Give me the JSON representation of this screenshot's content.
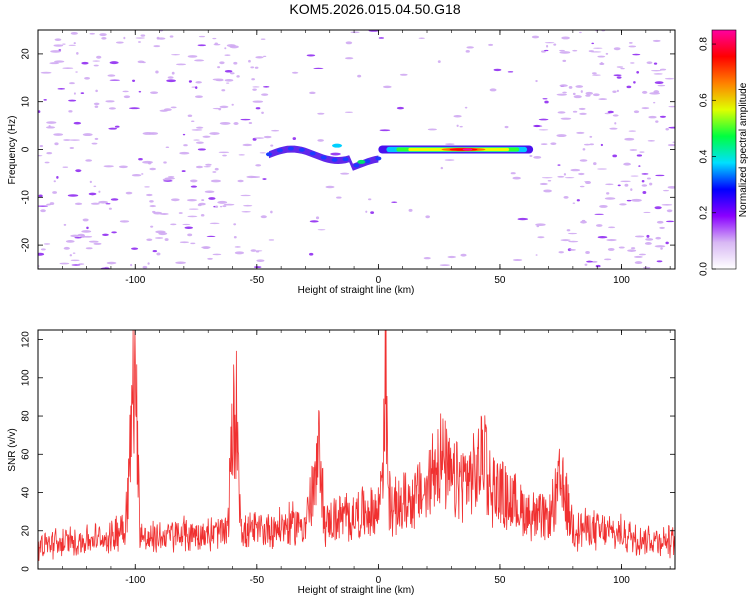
{
  "title": "KOM5.2026.015.04.50.G18",
  "chart_data": [
    {
      "type": "heatmap",
      "xlabel": "Height of straight line (km)",
      "ylabel": "Frequency (Hz)",
      "xlim": [
        -140,
        122
      ],
      "ylim": [
        -25,
        25
      ],
      "xticks": [
        -100,
        -50,
        0,
        50,
        100
      ],
      "xtick_labels": [
        "-100",
        "-50",
        "0",
        "50",
        "100"
      ],
      "yticks": [
        -20,
        -10,
        0,
        10,
        20
      ],
      "ytick_labels": [
        "-20",
        "-10",
        "0",
        "10",
        "20"
      ],
      "colorbar": {
        "label": "Normalized spectral amplitude",
        "range": [
          0.0,
          0.85
        ],
        "ticks": [
          0.0,
          0.2,
          0.4,
          0.6,
          0.8
        ],
        "tick_labels": [
          "0.0",
          "0.2",
          "0.4",
          "0.6",
          "0.8"
        ],
        "colors": [
          "#ffffff",
          "#d8b8f4",
          "#8a00ff",
          "#0000ff",
          "#00e0ff",
          "#00ff40",
          "#e0ff00",
          "#ff8000",
          "#ff0000",
          "#ff00a0"
        ]
      },
      "features": [
        {
          "name": "main ridge",
          "x_range": [
            0,
            62
          ],
          "frequency": 0,
          "peak_amplitude": 0.8,
          "peak_x": 35
        },
        {
          "name": "left wavy band",
          "x_range": [
            -45,
            0
          ],
          "frequency": -1.5,
          "peak_amplitude": 0.25
        }
      ]
    },
    {
      "type": "line",
      "xlabel": "Height of straight line (km)",
      "ylabel": "SNR (v/v)",
      "xlim": [
        -140,
        122
      ],
      "ylim": [
        0,
        125
      ],
      "xticks": [
        -100,
        -50,
        0,
        50,
        100
      ],
      "xtick_labels": [
        "-100",
        "-50",
        "0",
        "50",
        "100"
      ],
      "yticks": [
        0,
        20,
        40,
        60,
        80,
        100,
        120
      ],
      "ytick_labels": [
        "0",
        "20",
        "40",
        "60",
        "80",
        "100",
        "120"
      ],
      "color": "#f03030",
      "series": [
        {
          "name": "SNR",
          "x": [
            -140,
            -130,
            -120,
            -110,
            -104,
            -102,
            -101,
            -100,
            -99,
            -98,
            -95,
            -90,
            -80,
            -70,
            -62,
            -60,
            -59,
            -58,
            -57,
            -56,
            -50,
            -40,
            -30,
            -25,
            -24,
            -23,
            -22,
            -20,
            -10,
            0,
            2,
            3,
            4,
            6,
            10,
            20,
            24,
            25,
            30,
            40,
            43,
            44,
            45,
            50,
            60,
            70,
            75,
            80,
            90,
            100,
            110,
            122
          ],
          "y": [
            12,
            14,
            15,
            16,
            25,
            60,
            95,
            125,
            60,
            20,
            15,
            17,
            18,
            18,
            20,
            70,
            80,
            80,
            40,
            18,
            20,
            22,
            24,
            50,
            70,
            40,
            22,
            25,
            28,
            30,
            60,
            112,
            40,
            30,
            35,
            40,
            60,
            60,
            45,
            48,
            60,
            68,
            45,
            40,
            30,
            25,
            45,
            22,
            20,
            18,
            16,
            14
          ]
        }
      ]
    }
  ]
}
